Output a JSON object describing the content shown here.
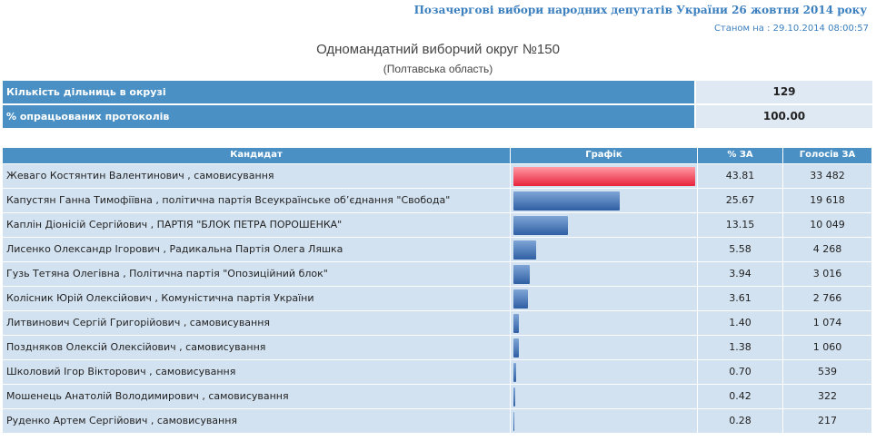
{
  "header": {
    "election": "Позачергові вибори народних депутатів України 26 жовтня 2014 року",
    "status": "Станом на : 29.10.2014 08:00:57",
    "title": "Одномандатний виборчий округ №150",
    "region": "(Полтавська область)"
  },
  "summary": {
    "rows": [
      [
        "Кількість дільниць в окрузі",
        "129"
      ],
      [
        "% опрацьованих протоколів",
        "100.00"
      ]
    ]
  },
  "table": {
    "columns": [
      "Кандидат",
      "Графік",
      "% ЗА",
      "Голосів ЗА"
    ],
    "rows": [
      [
        "Жеваго Костянтин Валентинович , самовисування",
        "43.81",
        "33 482"
      ],
      [
        "Капустян Ганна Тимофіївна , політична партія Всеукраїнське об’єднання \"Свобода\"",
        "25.67",
        "19 618"
      ],
      [
        "Каплін Діонісій Сергійович , ПАРТІЯ \"БЛОК ПЕТРА ПОРОШЕНКА\"",
        "13.15",
        "10 049"
      ],
      [
        "Лисенко Олександр Ігорович , Радикальна Партія Олега Ляшка",
        "5.58",
        "4 268"
      ],
      [
        "Гузь Тетяна Олегівна , Політична партія \"Опозиційний блок\"",
        "3.94",
        "3 016"
      ],
      [
        "Колісник Юрій Олексійович , Комуністична партія України",
        "3.61",
        "2 766"
      ],
      [
        "Литвинович Сергій Григорійович , самовисування",
        "1.40",
        "1 074"
      ],
      [
        "Поздняков Олексій Олексійович , самовисування",
        "1.38",
        "1 060"
      ],
      [
        "Школовий Ігор Вікторович , самовисування",
        "0.70",
        "539"
      ],
      [
        "Мошенець Анатолій Володимирович , самовисування",
        "0.42",
        "322"
      ],
      [
        "Руденко Артем Сергійович , самовисування",
        "0.28",
        "217"
      ]
    ]
  }
}
